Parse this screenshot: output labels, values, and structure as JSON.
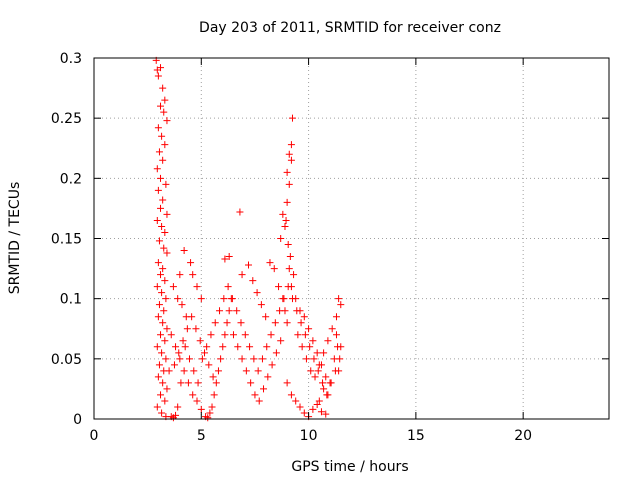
{
  "chart_data": {
    "type": "scatter",
    "title": "Day 203 of 2011, SRMTID for receiver conz",
    "xlabel": "GPS time / hours",
    "ylabel": "SRMTID / TECUs",
    "xlim": [
      0,
      24
    ],
    "ylim": [
      0,
      0.3
    ],
    "x_ticks": [
      0,
      5,
      10,
      15,
      20
    ],
    "x_tick_labels": [
      "0",
      "5",
      "10",
      "15",
      "20"
    ],
    "y_ticks": [
      0,
      0.05,
      0.1,
      0.15,
      0.2,
      0.25,
      0.3
    ],
    "y_tick_labels": [
      "0",
      "0.05",
      "0.1",
      "0.15",
      "0.2",
      "0.25",
      "0.3"
    ],
    "grid": true,
    "marker": "+",
    "color": "#ff0000",
    "series": [
      {
        "name": "SRMTID",
        "points": [
          [
            2.9,
            0.298
          ],
          [
            2.95,
            0.29
          ],
          [
            3.0,
            0.285
          ],
          [
            3.1,
            0.292
          ],
          [
            3.2,
            0.275
          ],
          [
            3.3,
            0.265
          ],
          [
            3.1,
            0.26
          ],
          [
            3.25,
            0.255
          ],
          [
            3.4,
            0.248
          ],
          [
            3.0,
            0.242
          ],
          [
            3.15,
            0.235
          ],
          [
            3.3,
            0.228
          ],
          [
            3.05,
            0.222
          ],
          [
            3.2,
            0.215
          ],
          [
            2.95,
            0.208
          ],
          [
            3.1,
            0.2
          ],
          [
            3.35,
            0.195
          ],
          [
            3.0,
            0.19
          ],
          [
            3.2,
            0.182
          ],
          [
            3.1,
            0.175
          ],
          [
            3.4,
            0.17
          ],
          [
            2.95,
            0.165
          ],
          [
            3.15,
            0.16
          ],
          [
            3.3,
            0.155
          ],
          [
            3.05,
            0.148
          ],
          [
            3.25,
            0.142
          ],
          [
            3.4,
            0.138
          ],
          [
            3.0,
            0.13
          ],
          [
            3.2,
            0.125
          ],
          [
            3.1,
            0.12
          ],
          [
            3.3,
            0.115
          ],
          [
            2.95,
            0.11
          ],
          [
            3.15,
            0.105
          ],
          [
            3.35,
            0.1
          ],
          [
            3.05,
            0.095
          ],
          [
            3.25,
            0.09
          ],
          [
            3.0,
            0.085
          ],
          [
            3.2,
            0.08
          ],
          [
            3.4,
            0.075
          ],
          [
            3.1,
            0.07
          ],
          [
            3.3,
            0.065
          ],
          [
            2.95,
            0.06
          ],
          [
            3.15,
            0.055
          ],
          [
            3.35,
            0.05
          ],
          [
            3.05,
            0.045
          ],
          [
            3.25,
            0.04
          ],
          [
            3.0,
            0.035
          ],
          [
            3.2,
            0.03
          ],
          [
            3.4,
            0.025
          ],
          [
            3.1,
            0.02
          ],
          [
            3.3,
            0.015
          ],
          [
            2.95,
            0.01
          ],
          [
            3.15,
            0.005
          ],
          [
            3.35,
            0.002
          ],
          [
            3.6,
            0.002
          ],
          [
            3.7,
            0.001
          ],
          [
            3.8,
            0.003
          ],
          [
            3.9,
            0.01
          ],
          [
            4.0,
            0.12
          ],
          [
            4.2,
            0.14
          ],
          [
            4.5,
            0.13
          ],
          [
            4.1,
            0.095
          ],
          [
            4.3,
            0.085
          ],
          [
            3.7,
            0.11
          ],
          [
            3.9,
            0.1
          ],
          [
            4.6,
            0.12
          ],
          [
            4.8,
            0.11
          ],
          [
            5.0,
            0.1
          ],
          [
            3.6,
            0.07
          ],
          [
            3.8,
            0.06
          ],
          [
            4.0,
            0.05
          ],
          [
            4.2,
            0.04
          ],
          [
            4.4,
            0.03
          ],
          [
            4.6,
            0.02
          ],
          [
            4.8,
            0.015
          ],
          [
            5.0,
            0.008
          ],
          [
            3.75,
            0.045
          ],
          [
            3.95,
            0.055
          ],
          [
            4.15,
            0.065
          ],
          [
            4.35,
            0.075
          ],
          [
            4.55,
            0.085
          ],
          [
            4.75,
            0.075
          ],
          [
            4.95,
            0.065
          ],
          [
            5.15,
            0.055
          ],
          [
            5.35,
            0.045
          ],
          [
            5.55,
            0.035
          ],
          [
            5.2,
            0.002
          ],
          [
            5.3,
            0.001
          ],
          [
            5.4,
            0.005
          ],
          [
            5.5,
            0.01
          ],
          [
            5.6,
            0.02
          ],
          [
            5.7,
            0.03
          ],
          [
            5.8,
            0.04
          ],
          [
            5.9,
            0.05
          ],
          [
            6.0,
            0.06
          ],
          [
            6.1,
            0.07
          ],
          [
            6.2,
            0.08
          ],
          [
            6.3,
            0.09
          ],
          [
            6.4,
            0.1
          ],
          [
            6.1,
            0.133
          ],
          [
            6.3,
            0.135
          ],
          [
            6.8,
            0.172
          ],
          [
            6.9,
            0.12
          ],
          [
            7.2,
            0.128
          ],
          [
            7.4,
            0.115
          ],
          [
            7.6,
            0.105
          ],
          [
            7.8,
            0.095
          ],
          [
            8.0,
            0.085
          ],
          [
            6.5,
            0.07
          ],
          [
            6.7,
            0.06
          ],
          [
            6.9,
            0.05
          ],
          [
            7.1,
            0.04
          ],
          [
            7.3,
            0.03
          ],
          [
            7.5,
            0.02
          ],
          [
            7.7,
            0.015
          ],
          [
            7.9,
            0.025
          ],
          [
            8.1,
            0.035
          ],
          [
            8.3,
            0.045
          ],
          [
            8.5,
            0.055
          ],
          [
            8.7,
            0.065
          ],
          [
            8.2,
            0.13
          ],
          [
            8.4,
            0.125
          ],
          [
            8.6,
            0.11
          ],
          [
            8.8,
            0.1
          ],
          [
            8.9,
            0.09
          ],
          [
            9.0,
            0.08
          ],
          [
            8.7,
            0.15
          ],
          [
            8.9,
            0.16
          ],
          [
            8.8,
            0.17
          ],
          [
            9.0,
            0.18
          ],
          [
            9.1,
            0.195
          ],
          [
            9.0,
            0.205
          ],
          [
            9.2,
            0.215
          ],
          [
            9.1,
            0.22
          ],
          [
            9.2,
            0.228
          ],
          [
            9.25,
            0.25
          ],
          [
            8.95,
            0.165
          ],
          [
            9.05,
            0.145
          ],
          [
            9.15,
            0.135
          ],
          [
            9.1,
            0.125
          ],
          [
            9.3,
            0.12
          ],
          [
            9.2,
            0.11
          ],
          [
            9.4,
            0.1
          ],
          [
            9.0,
            0.03
          ],
          [
            9.2,
            0.02
          ],
          [
            9.4,
            0.015
          ],
          [
            9.6,
            0.01
          ],
          [
            9.8,
            0.005
          ],
          [
            10.0,
            0.002
          ],
          [
            10.2,
            0.008
          ],
          [
            10.4,
            0.012
          ],
          [
            10.6,
            0.006
          ],
          [
            10.8,
            0.004
          ],
          [
            9.5,
            0.07
          ],
          [
            9.7,
            0.06
          ],
          [
            9.9,
            0.05
          ],
          [
            10.1,
            0.04
          ],
          [
            10.3,
            0.035
          ],
          [
            10.5,
            0.045
          ],
          [
            10.7,
            0.055
          ],
          [
            10.9,
            0.065
          ],
          [
            11.1,
            0.075
          ],
          [
            11.3,
            0.085
          ],
          [
            11.4,
            0.1
          ],
          [
            11.5,
            0.095
          ],
          [
            11.3,
            0.07
          ],
          [
            11.5,
            0.06
          ],
          [
            11.2,
            0.05
          ],
          [
            11.4,
            0.04
          ],
          [
            11.0,
            0.03
          ],
          [
            10.9,
            0.02
          ],
          [
            10.7,
            0.025
          ],
          [
            10.5,
            0.015
          ],
          [
            9.6,
            0.09
          ],
          [
            9.8,
            0.085
          ],
          [
            10.0,
            0.075
          ],
          [
            10.2,
            0.065
          ],
          [
            10.4,
            0.055
          ],
          [
            10.6,
            0.045
          ],
          [
            10.8,
            0.035
          ],
          [
            3.5,
            0.04
          ],
          [
            4.05,
            0.03
          ],
          [
            4.25,
            0.06
          ],
          [
            4.45,
            0.05
          ],
          [
            4.65,
            0.04
          ],
          [
            4.85,
            0.03
          ],
          [
            5.05,
            0.05
          ],
          [
            5.25,
            0.06
          ],
          [
            5.45,
            0.07
          ],
          [
            5.65,
            0.08
          ],
          [
            5.85,
            0.09
          ],
          [
            6.05,
            0.1
          ],
          [
            6.25,
            0.11
          ],
          [
            6.45,
            0.1
          ],
          [
            6.65,
            0.09
          ],
          [
            6.85,
            0.08
          ],
          [
            7.05,
            0.07
          ],
          [
            7.25,
            0.06
          ],
          [
            7.45,
            0.05
          ],
          [
            7.65,
            0.04
          ],
          [
            7.85,
            0.05
          ],
          [
            8.05,
            0.06
          ],
          [
            8.25,
            0.07
          ],
          [
            8.45,
            0.08
          ],
          [
            8.65,
            0.09
          ],
          [
            8.85,
            0.1
          ],
          [
            9.05,
            0.11
          ],
          [
            9.25,
            0.1
          ],
          [
            9.45,
            0.09
          ],
          [
            9.65,
            0.08
          ],
          [
            9.85,
            0.07
          ],
          [
            10.05,
            0.06
          ],
          [
            10.25,
            0.05
          ],
          [
            10.45,
            0.04
          ],
          [
            10.65,
            0.03
          ],
          [
            10.85,
            0.02
          ],
          [
            11.05,
            0.03
          ],
          [
            11.25,
            0.04
          ],
          [
            11.45,
            0.05
          ],
          [
            11.35,
            0.06
          ]
        ]
      }
    ]
  }
}
